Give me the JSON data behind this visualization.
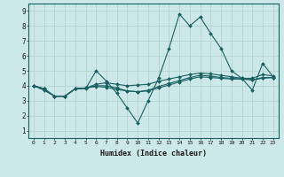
{
  "xlabel": "Humidex (Indice chaleur)",
  "bg_color": "#cde8e8",
  "grid_color": "#b0cfcf",
  "line_color": "#1a6060",
  "xlim": [
    -0.5,
    23.5
  ],
  "ylim": [
    0.5,
    9.5
  ],
  "xticks": [
    0,
    1,
    2,
    3,
    4,
    5,
    6,
    7,
    8,
    9,
    10,
    11,
    12,
    13,
    14,
    15,
    16,
    17,
    18,
    19,
    20,
    21,
    22,
    23
  ],
  "yticks": [
    1,
    2,
    3,
    4,
    5,
    6,
    7,
    8,
    9
  ],
  "lines": [
    [
      4.0,
      3.7,
      3.3,
      3.3,
      3.8,
      3.8,
      5.0,
      4.3,
      3.5,
      2.5,
      1.5,
      3.0,
      4.5,
      6.5,
      8.8,
      8.0,
      8.6,
      7.5,
      6.5,
      5.0,
      4.5,
      3.7,
      5.5,
      4.6
    ],
    [
      4.0,
      3.8,
      3.3,
      3.3,
      3.8,
      3.85,
      4.1,
      4.2,
      4.1,
      4.0,
      4.05,
      4.1,
      4.3,
      4.45,
      4.6,
      4.75,
      4.85,
      4.8,
      4.7,
      4.6,
      4.5,
      4.5,
      4.75,
      4.65
    ],
    [
      4.0,
      3.8,
      3.3,
      3.3,
      3.8,
      3.85,
      4.0,
      4.0,
      3.85,
      3.65,
      3.6,
      3.7,
      3.95,
      4.15,
      4.35,
      4.55,
      4.7,
      4.65,
      4.55,
      4.5,
      4.45,
      4.4,
      4.55,
      4.55
    ],
    [
      4.0,
      3.8,
      3.3,
      3.3,
      3.8,
      3.85,
      3.95,
      3.9,
      3.75,
      3.65,
      3.6,
      3.65,
      3.85,
      4.05,
      4.25,
      4.45,
      4.6,
      4.55,
      4.5,
      4.45,
      4.45,
      4.4,
      4.5,
      4.55
    ]
  ]
}
